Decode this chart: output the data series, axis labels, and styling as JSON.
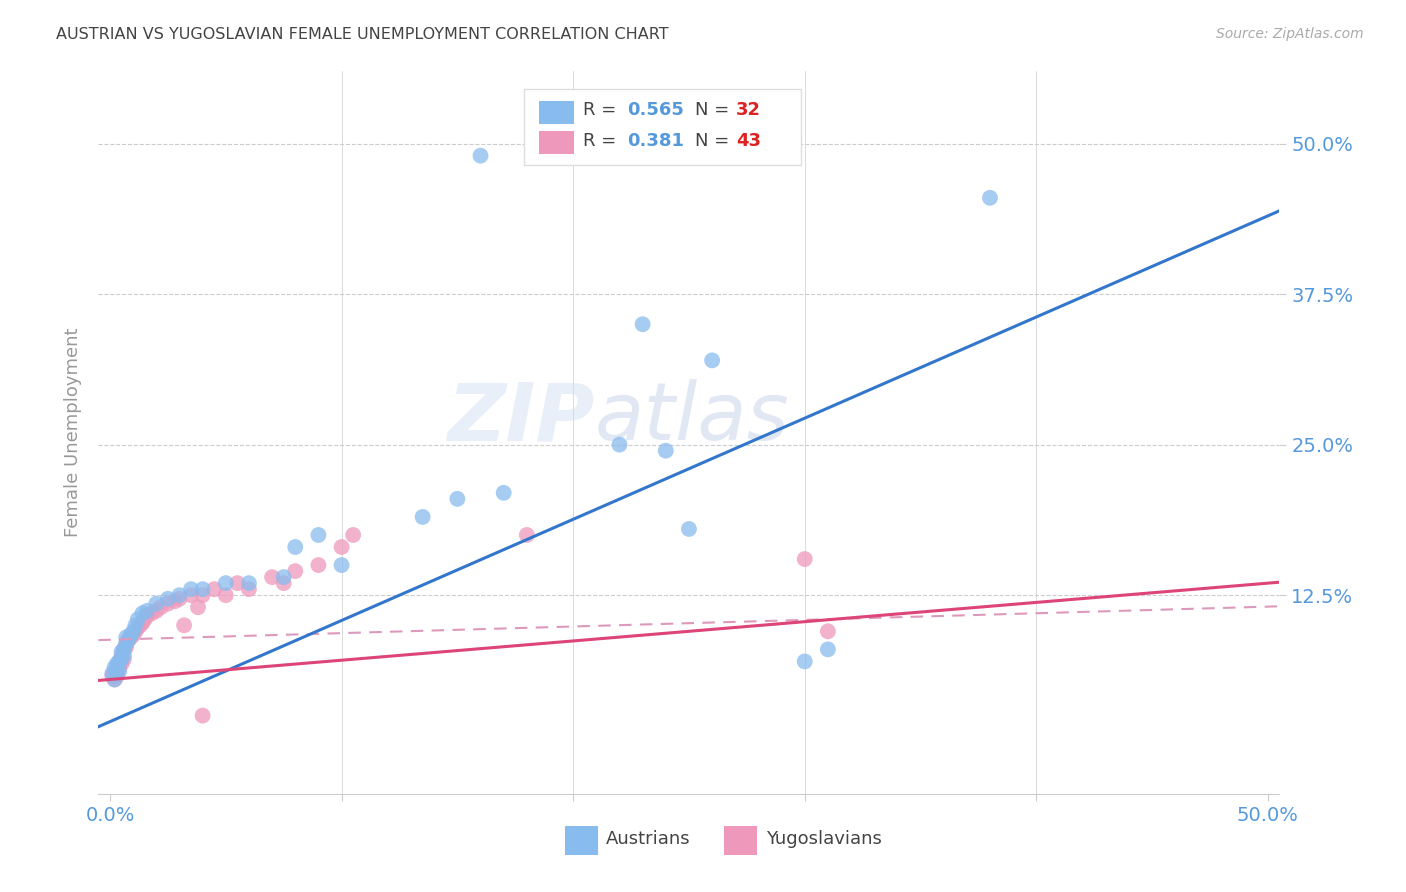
{
  "title": "AUSTRIAN VS YUGOSLAVIAN FEMALE UNEMPLOYMENT CORRELATION CHART",
  "source": "Source: ZipAtlas.com",
  "ylabel_label": "Female Unemployment",
  "ytick_labels": [
    "12.5%",
    "25.0%",
    "37.5%",
    "50.0%"
  ],
  "ytick_values": [
    0.125,
    0.25,
    0.375,
    0.5
  ],
  "xlim": [
    -0.005,
    0.505
  ],
  "ylim": [
    -0.04,
    0.56
  ],
  "blue_scatter": [
    [
      0.001,
      0.06
    ],
    [
      0.002,
      0.065
    ],
    [
      0.002,
      0.055
    ],
    [
      0.003,
      0.068
    ],
    [
      0.003,
      0.06
    ],
    [
      0.004,
      0.062
    ],
    [
      0.004,
      0.07
    ],
    [
      0.005,
      0.072
    ],
    [
      0.005,
      0.078
    ],
    [
      0.006,
      0.08
    ],
    [
      0.006,
      0.075
    ],
    [
      0.007,
      0.085
    ],
    [
      0.007,
      0.09
    ],
    [
      0.008,
      0.088
    ],
    [
      0.009,
      0.092
    ],
    [
      0.01,
      0.095
    ],
    [
      0.011,
      0.1
    ],
    [
      0.012,
      0.105
    ],
    [
      0.014,
      0.11
    ],
    [
      0.016,
      0.112
    ],
    [
      0.02,
      0.118
    ],
    [
      0.025,
      0.122
    ],
    [
      0.03,
      0.125
    ],
    [
      0.035,
      0.13
    ],
    [
      0.04,
      0.13
    ],
    [
      0.05,
      0.135
    ],
    [
      0.06,
      0.135
    ],
    [
      0.075,
      0.14
    ],
    [
      0.08,
      0.165
    ],
    [
      0.09,
      0.175
    ],
    [
      0.1,
      0.15
    ],
    [
      0.135,
      0.19
    ],
    [
      0.15,
      0.205
    ],
    [
      0.17,
      0.21
    ],
    [
      0.22,
      0.25
    ],
    [
      0.24,
      0.245
    ],
    [
      0.26,
      0.32
    ],
    [
      0.23,
      0.35
    ],
    [
      0.3,
      0.07
    ],
    [
      0.31,
      0.08
    ],
    [
      0.38,
      0.455
    ],
    [
      0.16,
      0.49
    ],
    [
      0.25,
      0.18
    ]
  ],
  "pink_scatter": [
    [
      0.001,
      0.058
    ],
    [
      0.002,
      0.06
    ],
    [
      0.002,
      0.055
    ],
    [
      0.003,
      0.062
    ],
    [
      0.003,
      0.058
    ],
    [
      0.004,
      0.065
    ],
    [
      0.004,
      0.07
    ],
    [
      0.005,
      0.068
    ],
    [
      0.005,
      0.075
    ],
    [
      0.006,
      0.072
    ],
    [
      0.006,
      0.08
    ],
    [
      0.007,
      0.082
    ],
    [
      0.007,
      0.085
    ],
    [
      0.008,
      0.088
    ],
    [
      0.009,
      0.09
    ],
    [
      0.01,
      0.092
    ],
    [
      0.011,
      0.095
    ],
    [
      0.012,
      0.098
    ],
    [
      0.013,
      0.1
    ],
    [
      0.014,
      0.102
    ],
    [
      0.015,
      0.105
    ],
    [
      0.016,
      0.108
    ],
    [
      0.018,
      0.11
    ],
    [
      0.02,
      0.112
    ],
    [
      0.022,
      0.115
    ],
    [
      0.025,
      0.118
    ],
    [
      0.028,
      0.12
    ],
    [
      0.03,
      0.122
    ],
    [
      0.032,
      0.1
    ],
    [
      0.035,
      0.125
    ],
    [
      0.038,
      0.115
    ],
    [
      0.04,
      0.125
    ],
    [
      0.045,
      0.13
    ],
    [
      0.05,
      0.125
    ],
    [
      0.055,
      0.135
    ],
    [
      0.06,
      0.13
    ],
    [
      0.07,
      0.14
    ],
    [
      0.075,
      0.135
    ],
    [
      0.08,
      0.145
    ],
    [
      0.09,
      0.15
    ],
    [
      0.1,
      0.165
    ],
    [
      0.105,
      0.175
    ],
    [
      0.18,
      0.175
    ],
    [
      0.3,
      0.155
    ],
    [
      0.31,
      0.095
    ],
    [
      0.04,
      0.025
    ]
  ],
  "blue_line_intercept": 0.02,
  "blue_line_slope": 0.84,
  "pink_line_intercept": 0.055,
  "pink_line_slope": 0.16,
  "dashed_line_intercept": 0.088,
  "dashed_line_slope": 0.055,
  "watermark_line1": "ZIP",
  "watermark_line2": "atlas",
  "dot_size": 130,
  "blue_scatter_color": "#88bbee",
  "blue_line_color": "#3377cc",
  "pink_scatter_color": "#ee99bb",
  "pink_line_color": "#dd4477",
  "dashed_line_color": "#dd99bb",
  "background_color": "#ffffff",
  "grid_color": "#cccccc",
  "title_color": "#444444",
  "axis_tick_color": "#5599dd",
  "ylabel_color": "#999999",
  "legend_r_color": "#444444",
  "legend_n_color": "#dd2222",
  "source_color": "#aaaaaa"
}
